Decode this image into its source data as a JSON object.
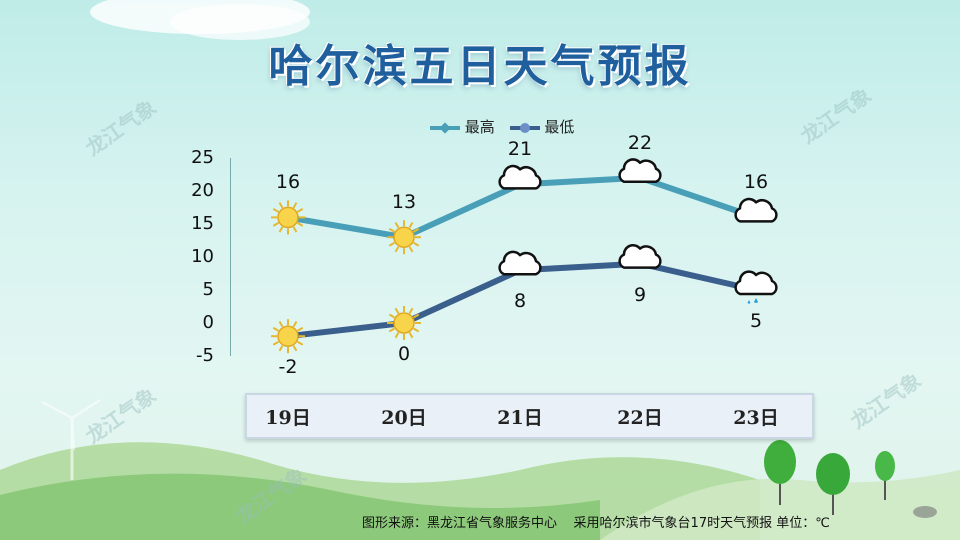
{
  "title": "哈尔滨五日天气预报",
  "legend": {
    "high": "最高",
    "low": "最低"
  },
  "watermark": "龙江气象",
  "source_left": "图形来源：黑龙江省气象服务中心",
  "source_right": "采用哈尔滨市气象台17时天气预报 单位：℃",
  "colors": {
    "high": "#4a9fb8",
    "low": "#3a5f8c",
    "title": "#1f5f9e"
  },
  "chart_data": {
    "type": "line",
    "categories": [
      "19日",
      "20日",
      "21日",
      "22日",
      "23日"
    ],
    "series": [
      {
        "name": "最高",
        "values": [
          16,
          13,
          21,
          22,
          16
        ]
      },
      {
        "name": "最低",
        "values": [
          -2,
          0,
          8,
          9,
          5
        ]
      }
    ],
    "ylim": [
      -5,
      25
    ],
    "yticks": [
      "25",
      "20",
      "15",
      "10",
      "5",
      "0",
      "-5"
    ],
    "high_labels": [
      "16",
      "13",
      "21",
      "22",
      "16"
    ],
    "low_labels": [
      "-2",
      "0",
      "8",
      "9",
      "5"
    ],
    "icons": {
      "high": [
        "sun-icon",
        "sun-icon",
        "cloud-icon",
        "cloud-icon",
        "cloud-icon"
      ],
      "low": [
        "sun-icon",
        "sun-icon",
        "cloud-icon",
        "cloud-icon",
        "rain-cloud-icon"
      ]
    }
  }
}
